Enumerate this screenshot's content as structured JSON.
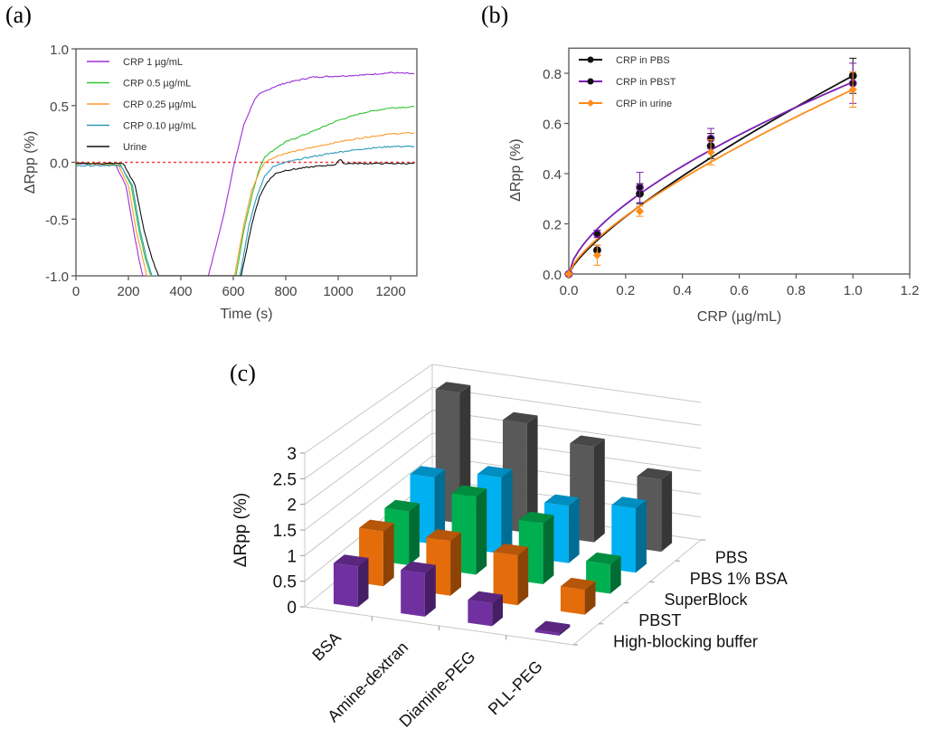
{
  "panel_labels": {
    "a": "(a)",
    "b": "(b)",
    "c": "(c)"
  },
  "chart_data": [
    {
      "id": "a",
      "type": "line",
      "title": "",
      "xlabel": "Time (s)",
      "ylabel": "ΔRpp (%)",
      "xlim": [
        0,
        1300
      ],
      "ylim": [
        -1.0,
        1.0
      ],
      "xticks": [
        0,
        200,
        400,
        600,
        800,
        1000,
        1200
      ],
      "yticks": [
        -1.0,
        -0.5,
        0.0,
        0.5,
        1.0
      ],
      "ytick_labels": [
        "-1.0",
        "-0.5",
        "0.0",
        "0.5",
        "1.0"
      ],
      "grid": false,
      "legend_position": "top-left",
      "reference_line": {
        "y": 0.0,
        "color": "#ff3b3b",
        "style": "dotted"
      },
      "series": [
        {
          "name": "CRP 1 µg/mL",
          "color": "#9b30d9",
          "x": [
            0,
            150,
            190,
            220,
            240,
            255,
            505,
            560,
            600,
            640,
            680,
            700,
            750,
            800,
            900,
            1000,
            1100,
            1200,
            1290
          ],
          "y": [
            -0.01,
            -0.02,
            -0.2,
            -0.6,
            -0.85,
            -1.0,
            -1.0,
            -0.5,
            -0.05,
            0.33,
            0.55,
            0.6,
            0.66,
            0.7,
            0.75,
            0.76,
            0.77,
            0.79,
            0.78
          ]
        },
        {
          "name": "CRP 0.5 µg/mL",
          "color": "#2ec42e",
          "x": [
            0,
            170,
            210,
            240,
            265,
            285,
            610,
            640,
            670,
            700,
            720,
            760,
            800,
            900,
            1000,
            1100,
            1200,
            1290
          ],
          "y": [
            -0.01,
            -0.02,
            -0.2,
            -0.6,
            -0.85,
            -1.0,
            -1.0,
            -0.6,
            -0.3,
            -0.05,
            0.05,
            0.12,
            0.18,
            0.27,
            0.37,
            0.44,
            0.48,
            0.49
          ]
        },
        {
          "name": "CRP 0.25 µg/mL",
          "color": "#ff9a2e",
          "x": [
            0,
            160,
            200,
            230,
            255,
            270,
            605,
            640,
            670,
            700,
            720,
            760,
            800,
            900,
            1000,
            1100,
            1200,
            1290
          ],
          "y": [
            -0.01,
            -0.02,
            -0.2,
            -0.6,
            -0.85,
            -1.0,
            -1.0,
            -0.55,
            -0.25,
            -0.08,
            0.0,
            0.05,
            0.08,
            0.13,
            0.18,
            0.22,
            0.25,
            0.26
          ]
        },
        {
          "name": "CRP 0.10 µg/mL",
          "color": "#2a9ab8",
          "x": [
            0,
            170,
            215,
            245,
            270,
            290,
            625,
            660,
            690,
            720,
            750,
            800,
            900,
            1000,
            1100,
            1200,
            1290
          ],
          "y": [
            -0.03,
            -0.03,
            -0.2,
            -0.6,
            -0.85,
            -1.0,
            -1.0,
            -0.55,
            -0.3,
            -0.12,
            -0.04,
            0.0,
            0.05,
            0.09,
            0.12,
            0.14,
            0.14
          ]
        },
        {
          "name": "Urine",
          "color": "#111111",
          "x": [
            0,
            180,
            225,
            260,
            290,
            315,
            630,
            670,
            700,
            730,
            760,
            800,
            900,
            990,
            1010,
            1020,
            1100,
            1200,
            1290
          ],
          "y": [
            -0.01,
            -0.01,
            -0.2,
            -0.6,
            -0.85,
            -1.0,
            -1.0,
            -0.55,
            -0.3,
            -0.17,
            -0.1,
            -0.07,
            -0.04,
            -0.02,
            0.03,
            -0.01,
            -0.01,
            -0.01,
            -0.01
          ]
        }
      ]
    },
    {
      "id": "b",
      "type": "line",
      "title": "",
      "xlabel": "CRP (µg/mL)",
      "ylabel": "ΔRpp (%)",
      "xlim": [
        0.0,
        1.2
      ],
      "ylim": [
        0.0,
        0.9
      ],
      "xticks": [
        0.0,
        0.2,
        0.4,
        0.6,
        0.8,
        1.0,
        1.2
      ],
      "xtick_labels": [
        "0.0",
        "0.2",
        "0.4",
        "0.6",
        "0.8",
        "1.0",
        "1.2"
      ],
      "yticks": [
        0.0,
        0.2,
        0.4,
        0.6,
        0.8
      ],
      "ytick_labels": [
        "0.0",
        "0.2",
        "0.4",
        "0.6",
        "0.8"
      ],
      "grid": false,
      "legend_position": "top-left",
      "series": [
        {
          "name": "CRP in PBS",
          "color": "#111111",
          "marker": "circle",
          "x": [
            0.0,
            0.1,
            0.25,
            0.5,
            1.0
          ],
          "y": [
            0.0,
            0.095,
            0.32,
            0.51,
            0.79
          ],
          "err": [
            0.0,
            0.02,
            0.04,
            0.05,
            0.07
          ],
          "fit_exponent": 0.77,
          "fit_scale": 0.79
        },
        {
          "name": "CRP in PBST",
          "color": "#7a1fb0",
          "marker": "circle",
          "x": [
            0.0,
            0.1,
            0.25,
            0.5,
            1.0
          ],
          "y": [
            0.0,
            0.16,
            0.345,
            0.54,
            0.76
          ],
          "err": [
            0.0,
            0.015,
            0.06,
            0.04,
            0.08
          ],
          "fit_exponent": 0.63,
          "fit_scale": 0.765
        },
        {
          "name": "CRP in urine",
          "color": "#ff8c1a",
          "marker": "diamond",
          "x": [
            0.0,
            0.1,
            0.25,
            0.5,
            1.0
          ],
          "y": [
            0.0,
            0.075,
            0.25,
            0.485,
            0.735
          ],
          "err": [
            0.0,
            0.04,
            0.02,
            0.05,
            0.07
          ],
          "fit_exponent": 0.72,
          "fit_scale": 0.735
        }
      ]
    },
    {
      "id": "c",
      "type": "bar3d",
      "title": "",
      "ylabel": "ΔRpp (%)",
      "zlim": [
        0,
        3
      ],
      "zticks": [
        "0",
        "0.5",
        "1",
        "1.5",
        "2",
        "2.5",
        "3"
      ],
      "categories": [
        "BSA",
        "Amine-dextran",
        "Diamine-PEG",
        "PLL-PEG"
      ],
      "series": [
        {
          "name": "High-blocking buffer",
          "color": "#7030a0",
          "values": [
            0.8,
            0.85,
            0.45,
            0.05
          ]
        },
        {
          "name": "PBST",
          "color": "#e46c0a",
          "values": [
            1.1,
            1.1,
            1.0,
            0.5
          ]
        },
        {
          "name": "SuperBlock",
          "color": "#00b050",
          "values": [
            1.1,
            1.6,
            1.25,
            0.6
          ]
        },
        {
          "name": "PBS 1% BSA",
          "color": "#00b0f0",
          "values": [
            1.4,
            1.6,
            1.2,
            1.35
          ]
        },
        {
          "name": "PBS",
          "color": "#595959",
          "values": [
            2.8,
            2.35,
            2.05,
            1.55
          ]
        }
      ]
    }
  ]
}
